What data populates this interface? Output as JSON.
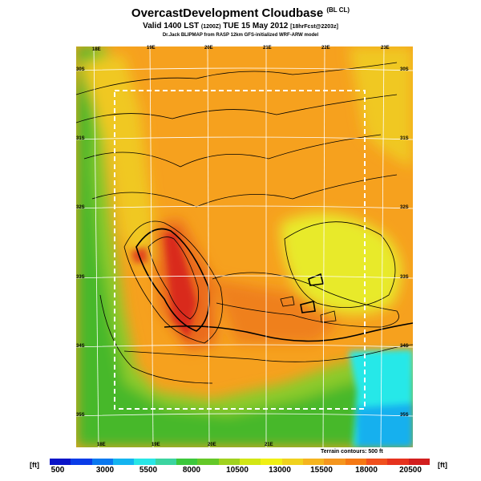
{
  "header": {
    "title": "OvercastDevelopment Cloudbase",
    "title_sub": "(BL CL)",
    "valid_a": "Valid 1400 LST",
    "valid_b": "(1200Z)",
    "valid_c": "TUE 15 May 2012",
    "valid_d": "[18hrFcst@2203z]",
    "credit": "Dr.Jack BLIPMAP from RASP 12km GFS-initialized WRF-ARW model"
  },
  "map": {
    "lon_labels_top": [
      "18E",
      "19E",
      "20E",
      "21E",
      "22E",
      "23E"
    ],
    "lon_labels_bottom": [
      "18E",
      "19E",
      "20E",
      "21E"
    ],
    "lat_labels_left": [
      "30S",
      "31S",
      "32S",
      "33S",
      "34S",
      "35S"
    ],
    "lat_labels_right": [
      "30S",
      "31S",
      "32S",
      "33S",
      "34S",
      "35S"
    ],
    "terrain_note": "Terrain contours: 500 ft",
    "colors": {
      "high": "#d92a1a",
      "orange": "#f6a11e",
      "yellow": "#e8ea2a",
      "green": "#46b82a",
      "cyan": "#28e8e8",
      "boundary": "#ffffff"
    }
  },
  "legend": {
    "unit_left": "[ft]",
    "unit_right": "[ft]",
    "ticks": [
      "500",
      "3000",
      "5500",
      "8000",
      "10500",
      "13000",
      "15500",
      "18000",
      "20500"
    ],
    "colors": [
      "#0a14c8",
      "#0a3ce8",
      "#0a78f0",
      "#14b4f0",
      "#28e6e6",
      "#3cd4a0",
      "#3cc83c",
      "#64c828",
      "#a0d21e",
      "#d2e614",
      "#f0f014",
      "#f0d21e",
      "#f5b41e",
      "#f5961e",
      "#f57814",
      "#f0501e",
      "#e6321e",
      "#d21e1e"
    ]
  }
}
